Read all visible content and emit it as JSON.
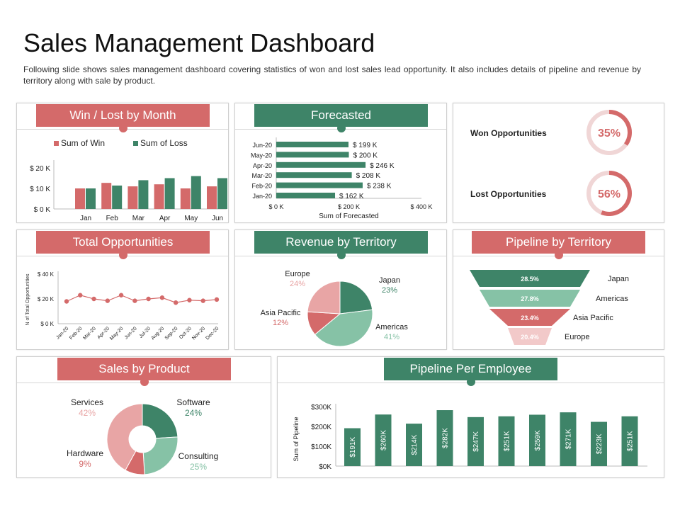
{
  "page": {
    "title": "Sales Management Dashboard",
    "subtitle": "Following slide shows sales management dashboard covering statistics of won and lost sales lead opportunity. It also includes details of pipeline and revenue by territory along with sale by product."
  },
  "colors": {
    "red": "#d46a6a",
    "green": "#3e8468",
    "pink": "#e8a5a5",
    "mint": "#86c2a6",
    "lightgreen": "#7fbfa0"
  },
  "panels": {
    "win_lost": {
      "title": "Win / Lost by Month"
    },
    "forecasted": {
      "title": "Forecasted"
    },
    "opportunities": {
      "won_label": "Won Opportunities",
      "won_value": "35%",
      "won_fraction": 0.35,
      "lost_label": "Lost Opportunities",
      "lost_value": "56%",
      "lost_fraction": 0.56
    },
    "total_opps": {
      "title": "Total Opportunities"
    },
    "revenue_territory": {
      "title": "Revenue by Territory"
    },
    "pipeline_territory": {
      "title": "Pipeline by Territory"
    },
    "sales_product": {
      "title": "Sales by Product"
    },
    "pipeline_employee": {
      "title": "Pipeline Per Employee"
    }
  },
  "chart_data": [
    {
      "id": "win_lost",
      "type": "bar",
      "categories": [
        "Jan",
        "Feb",
        "Mar",
        "Apr",
        "May",
        "Jun"
      ],
      "series": [
        {
          "name": "Sum of Win",
          "values": [
            10000,
            12700,
            11000,
            12000,
            10000,
            11000
          ],
          "color": "#d46a6a"
        },
        {
          "name": "Sum of Loss",
          "values": [
            10000,
            11400,
            14000,
            15000,
            16000,
            15000
          ],
          "color": "#3e8468"
        }
      ],
      "yticks": [
        "$ 0 K",
        "$ 10 K",
        "$ 20 K"
      ],
      "ylim": [
        0,
        20000
      ],
      "legend": "top"
    },
    {
      "id": "forecasted",
      "type": "bar",
      "orientation": "horizontal",
      "categories": [
        "Jun-20",
        "May-20",
        "Apr-20",
        "Mar-20",
        "Feb-20",
        "Jan-20"
      ],
      "values": [
        199,
        200,
        246,
        208,
        238,
        162
      ],
      "data_labels": [
        "$ 199 K",
        "$ 200 K",
        "$ 246 K",
        "$ 208 K",
        "$ 238 K",
        "$ 162 K"
      ],
      "xticks": [
        "$ 0 K",
        "$ 200 K",
        "$ 400 K"
      ],
      "xlim": [
        0,
        400
      ],
      "xlabel": "Sum of Forecasted"
    },
    {
      "id": "total_opps",
      "type": "line",
      "categories": [
        "Jan-20",
        "Feb-20",
        "Mar-20",
        "Apr-20",
        "May-20",
        "Jun-20",
        "Jul-20",
        "Aug-20",
        "Sep-20",
        "Oct-20",
        "Nov-20",
        "Dec-20"
      ],
      "values": [
        18000,
        23000,
        20000,
        18500,
        23000,
        18500,
        20000,
        21000,
        17000,
        19000,
        18500,
        19500
      ],
      "yticks": [
        "$ 0 K",
        "$ 20 K",
        "$ 40 K"
      ],
      "ylim": [
        0,
        40000
      ],
      "ylabel": "N of Total Opportunities"
    },
    {
      "id": "revenue_territory",
      "type": "pie",
      "slices": [
        {
          "label": "Japan",
          "value": 23,
          "text": "23%",
          "color": "#3e8468"
        },
        {
          "label": "Americas",
          "value": 41,
          "text": "41%",
          "color": "#86c2a6"
        },
        {
          "label": "Asia Pacific",
          "value": 12,
          "text": "12%",
          "color": "#d46a6a"
        },
        {
          "label": "Europe",
          "value": 24,
          "text": "24%",
          "color": "#e8a5a5"
        }
      ]
    },
    {
      "id": "pipeline_territory",
      "type": "funnel",
      "stages": [
        {
          "label": "Japan",
          "value": 28.5,
          "text": "28.5%",
          "color": "#3e8468"
        },
        {
          "label": "Americas",
          "value": 27.8,
          "text": "27.8%",
          "color": "#86c2a6"
        },
        {
          "label": "Asia Pacific",
          "value": 23.4,
          "text": "23.4%",
          "color": "#d46a6a"
        },
        {
          "label": "Europe",
          "value": 20.4,
          "text": "20.4%",
          "color": "#f2c9c9"
        }
      ]
    },
    {
      "id": "sales_product",
      "type": "pie",
      "donut": true,
      "slices": [
        {
          "label": "Software",
          "value": 24,
          "text": "24%",
          "color": "#3e8468"
        },
        {
          "label": "Consulting",
          "value": 25,
          "text": "25%",
          "color": "#86c2a6"
        },
        {
          "label": "Hardware",
          "value": 9,
          "text": "9%",
          "color": "#d46a6a"
        },
        {
          "label": "Services",
          "value": 42,
          "text": "42%",
          "color": "#e8a5a5"
        }
      ]
    },
    {
      "id": "pipeline_employee",
      "type": "bar",
      "values": [
        191,
        260,
        214,
        282,
        247,
        251,
        259,
        271,
        223,
        251
      ],
      "data_labels": [
        "$191K",
        "$260K",
        "$214K",
        "$282K",
        "$247K",
        "$251K",
        "$259K",
        "$271K",
        "$223K",
        "$251K"
      ],
      "yticks": [
        "$0K",
        "$100K",
        "$200K",
        "$300K"
      ],
      "ylim": [
        0,
        300
      ],
      "ylabel": "Sum of Pipeline"
    }
  ]
}
